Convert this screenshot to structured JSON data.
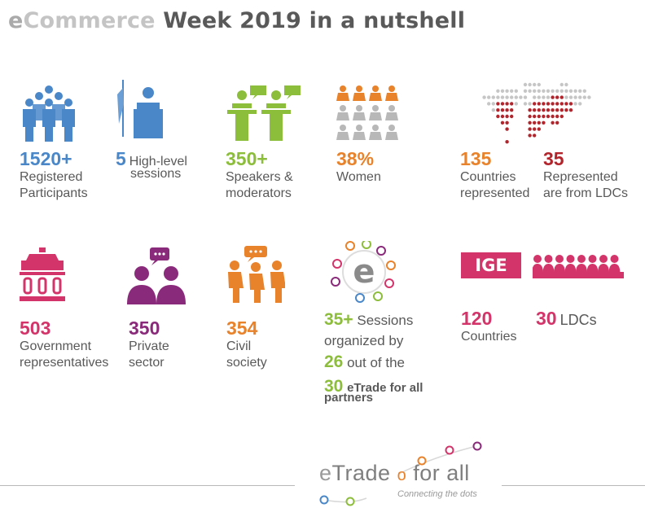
{
  "title": {
    "e": "e",
    "commerce": "Commerce",
    "rest": " Week 2019 in a nutshell"
  },
  "stats": {
    "participants": {
      "value": "1520+",
      "label1": "Registered",
      "label2": "Participants"
    },
    "sessions": {
      "value": "5",
      "label1": "High-level",
      "label2": "sessions"
    },
    "speakers": {
      "value": "350+",
      "label1": "Speakers &",
      "label2": "moderators"
    },
    "women": {
      "value": "38%",
      "label1": "Women"
    },
    "countries": {
      "value": "135",
      "label1": "Countries",
      "label2": "represented"
    },
    "ldcs": {
      "value": "35",
      "label1": "Represented",
      "label2": "are from LDCs"
    },
    "government": {
      "value": "503",
      "label1": "Government",
      "label2": "representatives"
    },
    "private": {
      "value": "350",
      "label1": "Private",
      "label2": "sector"
    },
    "civil": {
      "value": "354",
      "label1": "Civil",
      "label2": "society"
    },
    "ige_countries": {
      "value": "120",
      "label1": "Countries"
    },
    "ige_ldcs": {
      "value": "30",
      "label1": "LDCs"
    }
  },
  "ige": {
    "badge": "IGE"
  },
  "sessions_block": {
    "n1": "35+",
    "t1": "Sessions",
    "t2": "organized  by",
    "n2": "26",
    "t3": "out of  the",
    "n3": "30",
    "t4": "eTrade for all",
    "t5": "partners"
  },
  "logo": {
    "e": "e",
    "trade": "Trade",
    "for_all": "for all",
    "sub": "Connecting the dots"
  },
  "colors": {
    "blue": "#4a87c9",
    "green": "#8cbd3b",
    "orange": "#e8822b",
    "red": "#b3252c",
    "pink": "#d3356a",
    "purple": "#8a2a7a",
    "grey": "#595959"
  },
  "icons": [
    "participants-icon",
    "podium-icon",
    "speakers-icon",
    "women-grid-icon",
    "world-map-icon",
    "government-building-icon",
    "private-sector-icon",
    "civil-society-icon",
    "etrade-circle-icon",
    "ige-people-icon"
  ]
}
